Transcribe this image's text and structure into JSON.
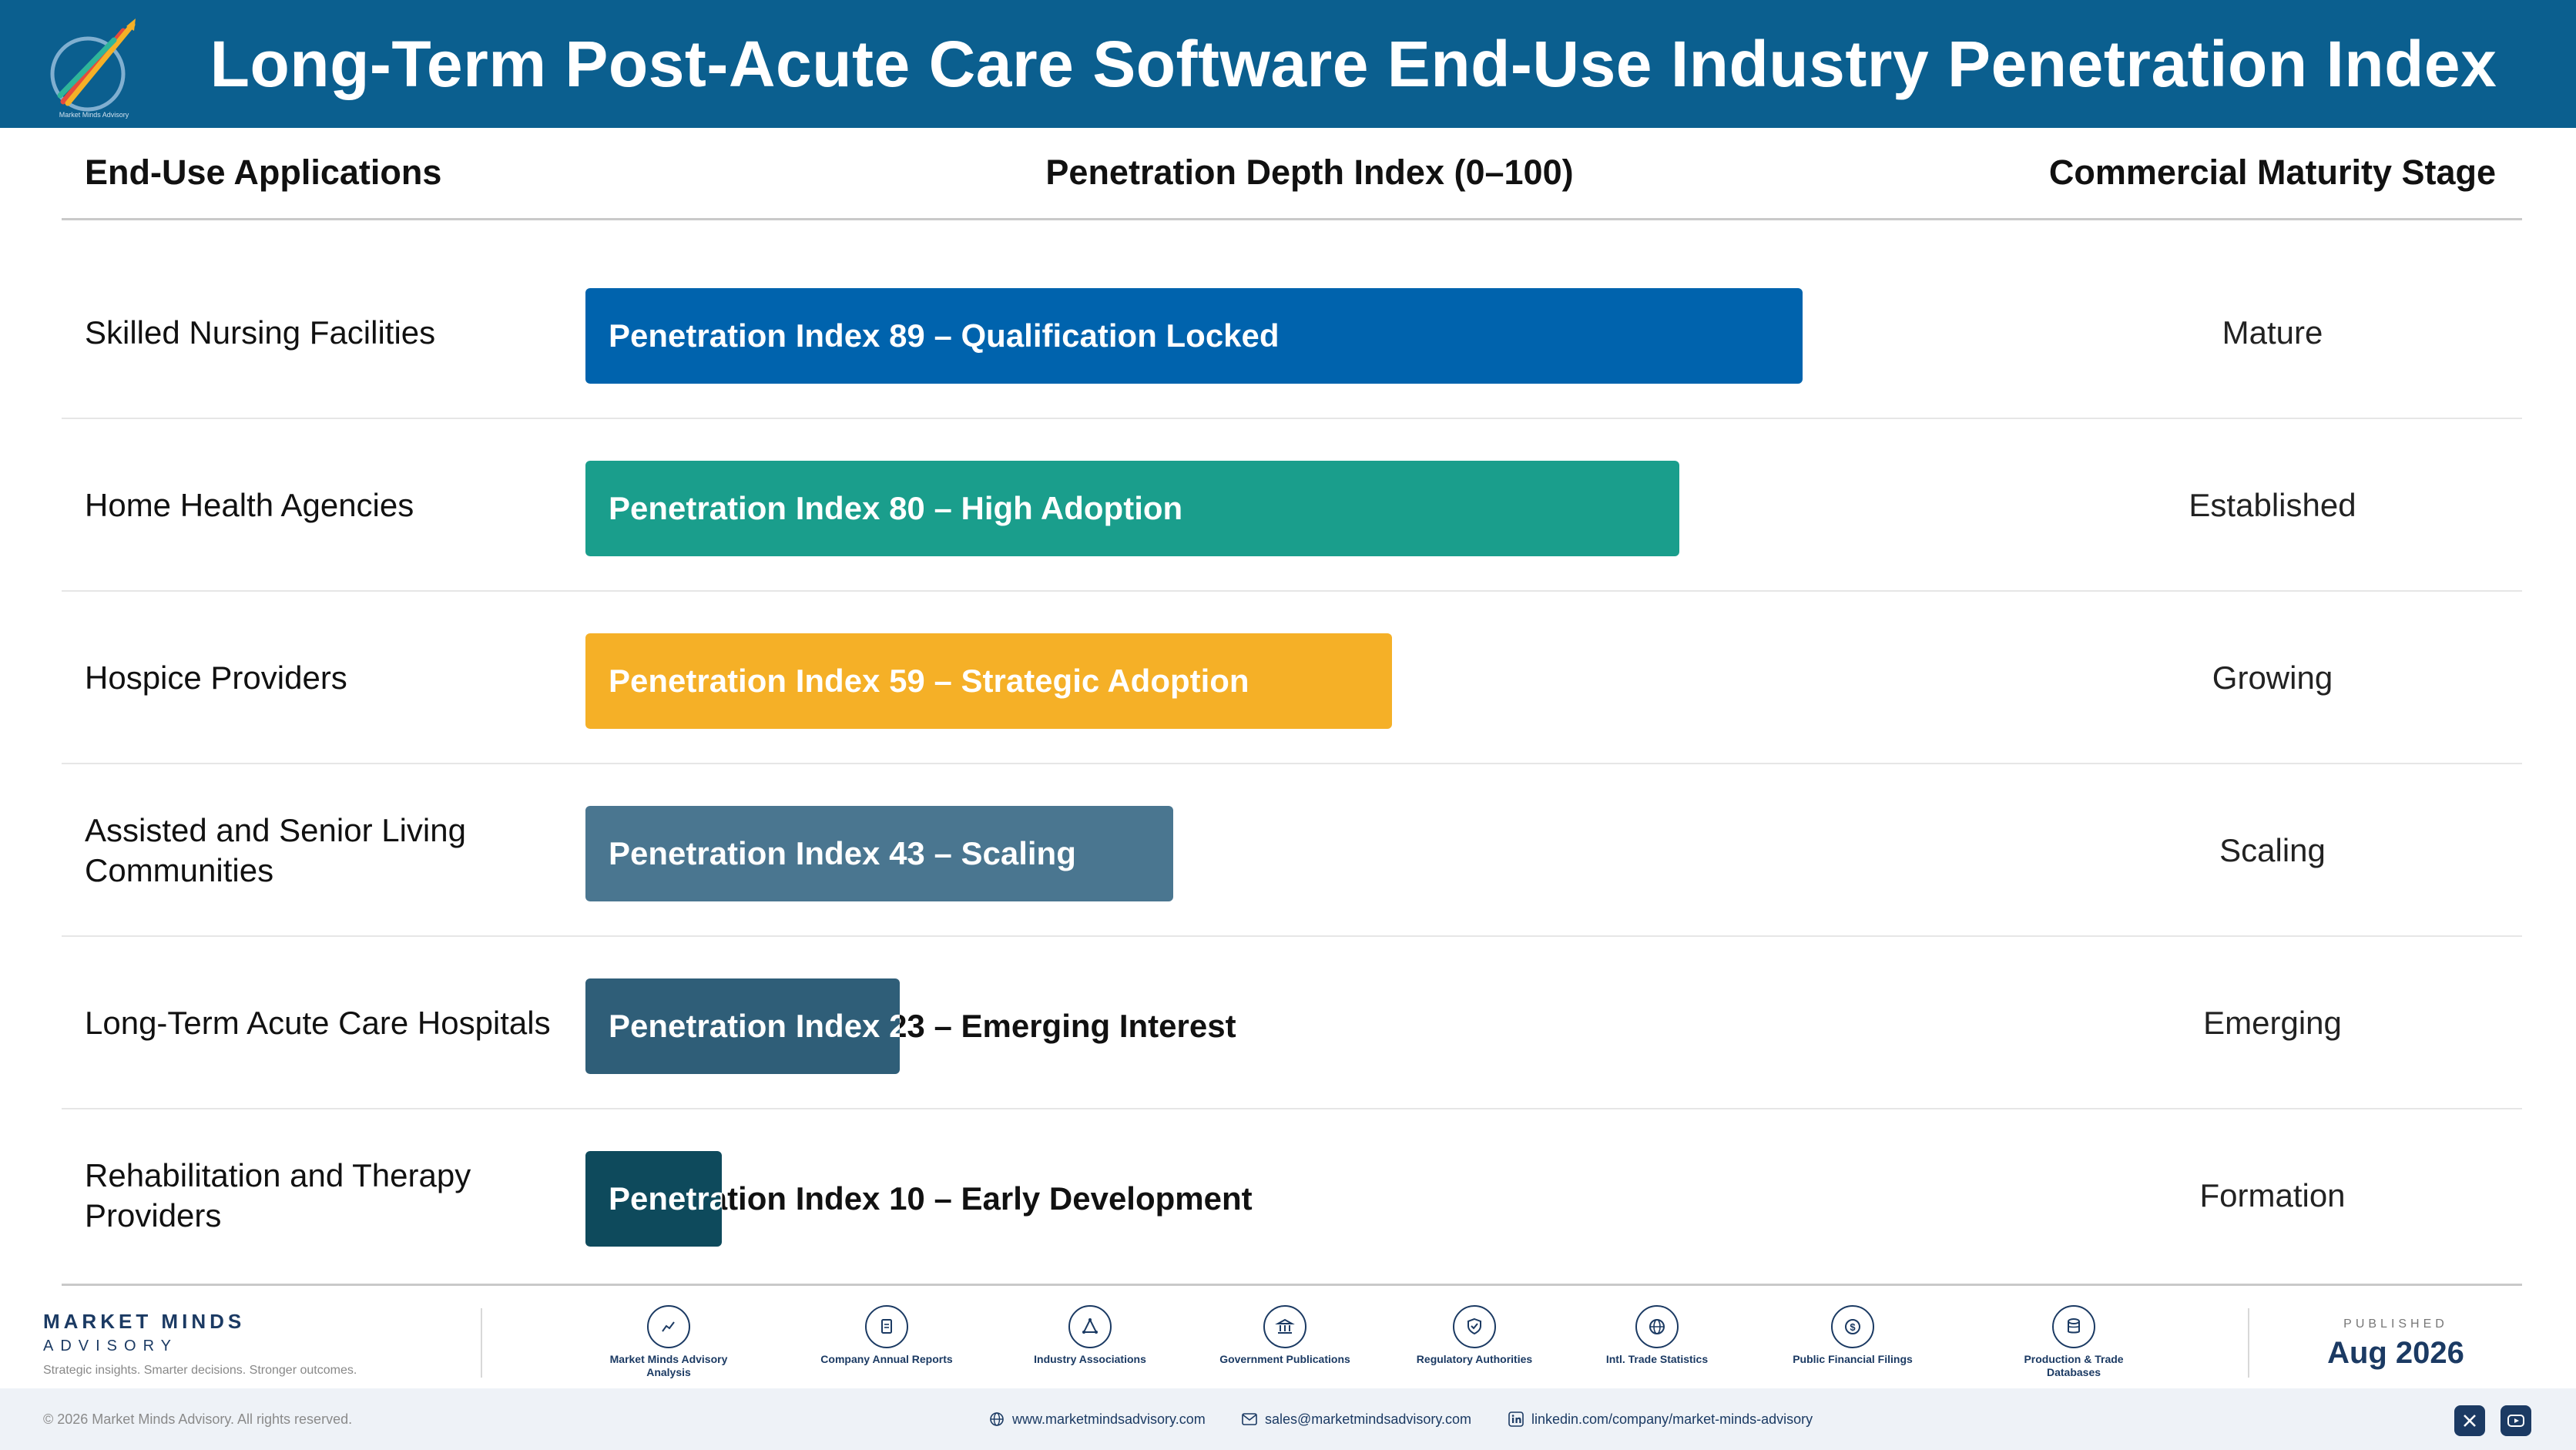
{
  "header": {
    "title": "Long-Term Post-Acute Care Software End-Use Industry Penetration Index",
    "logo_tagline": "Market Minds Advisory"
  },
  "columns": {
    "applications": "End-Use Applications",
    "depth": "Penetration Depth Index (0–100)",
    "stage": "Commercial Maturity Stage"
  },
  "chart_data": {
    "type": "bar",
    "title": "Long-Term Post-Acute Care Software End-Use Industry Penetration Index",
    "xlabel": "Penetration Depth Index (0–100)",
    "ylabel": "End-Use Applications",
    "xlim": [
      0,
      100
    ],
    "categories": [
      "Skilled Nursing Facilities",
      "Home Health Agencies",
      "Hospice Providers",
      "Assisted and Senior Living Communities",
      "Long-Term Acute Care Hospitals",
      "Rehabilitation and Therapy Providers"
    ],
    "values": [
      89,
      80,
      59,
      43,
      23,
      10
    ],
    "bar_labels": [
      "Penetration Index 89 – Qualification Locked",
      "Penetration Index 80 – High Adoption",
      "Penetration Index 59 – Strategic Adoption",
      "Penetration Index 43 – Scaling",
      "Penetration Index 23 – Emerging Interest",
      "Penetration Index 10 – Early Development"
    ],
    "stages": [
      "Mature",
      "Established",
      "Growing",
      "Scaling",
      "Emerging",
      "Formation"
    ],
    "colors": [
      "#0063ad",
      "#1a9e8c",
      "#f5b027",
      "#4a7690",
      "#2f5e78",
      "#0e4a5c"
    ]
  },
  "footer": {
    "brand_name": "MARKET MINDS",
    "brand_sub": "ADVISORY",
    "brand_tagline": "Strategic insights. Smarter decisions. Stronger outcomes.",
    "sources": [
      {
        "label": "Market Minds Advisory Analysis",
        "icon": "trend-line-icon"
      },
      {
        "label": "Company Annual Reports",
        "icon": "document-icon"
      },
      {
        "label": "Industry Associations",
        "icon": "network-icon"
      },
      {
        "label": "Government Publications",
        "icon": "building-icon"
      },
      {
        "label": "Regulatory Authorities",
        "icon": "shield-icon"
      },
      {
        "label": "Intl. Trade Statistics",
        "icon": "globe-icon"
      },
      {
        "label": "Public Financial Filings",
        "icon": "dollar-icon"
      },
      {
        "label": "Production & Trade Databases",
        "icon": "database-icon"
      }
    ],
    "published_label": "PUBLISHED",
    "published_date": "Aug 2026"
  },
  "subfooter": {
    "copyright": "© 2026 Market Minds Advisory. All rights reserved.",
    "website": "www.marketmindsadvisory.com",
    "email": "sales@marketmindsadvisory.com",
    "linkedin": "linkedin.com/company/market-minds-advisory"
  }
}
